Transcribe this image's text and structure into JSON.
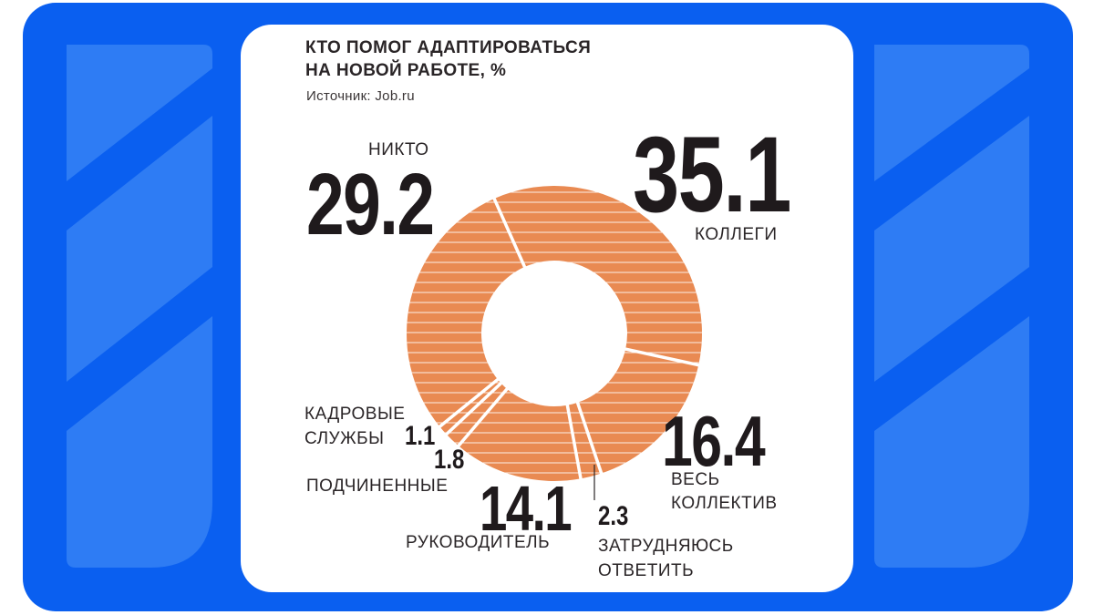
{
  "theme": {
    "frame_color": "#0a5ff0",
    "frame_shape_color": "#2e7cf4",
    "card_bg": "#ffffff",
    "slice_color": "#e98a52",
    "stripe_color": "#ffffff",
    "text_color": "#2a2527"
  },
  "chart_data": {
    "type": "pie",
    "title": "КТО ПОМОГ АДАПТИРОВАТЬСЯ НА НОВОЙ РАБОТЕ, %",
    "title_lines": [
      "КТО ПОМОГ АДАПТИРОВАТЬСЯ",
      "НА НОВОЙ РАБОТЕ, %"
    ],
    "source": "Источник: Job.ru",
    "donut": true,
    "categories": [
      "КОЛЛЕГИ",
      "ВЕСЬ КОЛЛЕКТИВ",
      "ЗАТРУДНЯЮСЬ ОТВЕТИТЬ",
      "РУКОВОДИТЕЛЬ",
      "ПОДЧИНЕННЫЕ",
      "КАДРОВЫЕ СЛУЖБЫ",
      "НИКТО"
    ],
    "values": [
      35.1,
      16.4,
      2.3,
      14.1,
      1.8,
      1.1,
      29.2
    ],
    "value_labels": [
      "35.1",
      "16.4",
      "2.3",
      "14.1",
      "1.8",
      "1.1",
      "29.2"
    ],
    "label_lines": {
      "kollegi": [
        "КОЛЛЕГИ"
      ],
      "ves_kollektiv": [
        "ВЕСЬ",
        "КОЛЛЕКТИВ"
      ],
      "zatrudnyayus": [
        "ЗАТРУДНЯЮСЬ",
        "ОТВЕТИТЬ"
      ],
      "rukovoditel": [
        "РУКОВОДИТЕЛЬ"
      ],
      "podchinennye": [
        "ПОДЧИНЕННЫЕ"
      ],
      "kadrovye": [
        "КАДРОВЫЕ",
        "СЛУЖБЫ"
      ],
      "nikto": [
        "НИКТО"
      ]
    }
  }
}
